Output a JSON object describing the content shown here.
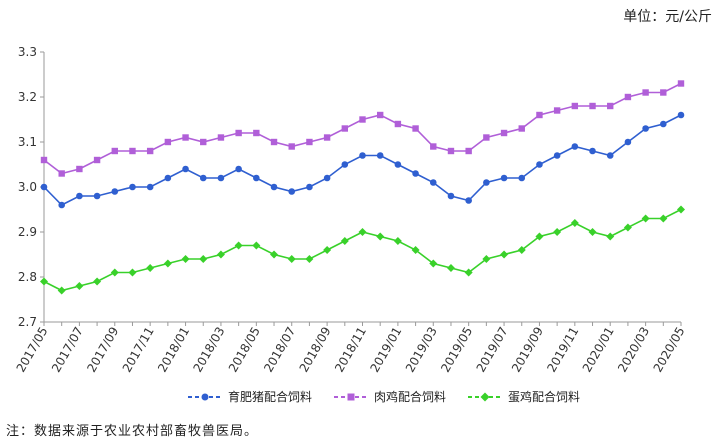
{
  "unit_label": "单位：元/公斤",
  "note": "注：数据来源于农业农村部畜牧兽医局。",
  "chart_data": {
    "type": "line",
    "title": "",
    "xlabel": "",
    "ylabel": "",
    "ylim": [
      2.7,
      3.3
    ],
    "yticks": [
      "3.3",
      "3.2",
      "3.1",
      "3.0",
      "2.9",
      "2.8",
      "2.7"
    ],
    "grid": false,
    "legend_position": "bottom",
    "x": [
      "2017/05",
      "2017/06",
      "2017/07",
      "2017/08",
      "2017/09",
      "2017/10",
      "2017/11",
      "2017/12",
      "2018/01",
      "2018/02",
      "2018/03",
      "2018/04",
      "2018/05",
      "2018/06",
      "2018/07",
      "2018/08",
      "2018/09",
      "2018/10",
      "2018/11",
      "2018/12",
      "2019/01",
      "2019/02",
      "2019/03",
      "2019/04",
      "2019/05",
      "2019/06",
      "2019/07",
      "2019/08",
      "2019/09",
      "2019/10",
      "2019/11",
      "2019/12",
      "2020/01",
      "2020/02",
      "2020/03",
      "2020/04",
      "2020/05"
    ],
    "x_tick_labels": [
      "2017/05",
      "2017/07",
      "2017/09",
      "2017/11",
      "2018/01",
      "2018/03",
      "2018/05",
      "2018/07",
      "2018/09",
      "2018/11",
      "2019/01",
      "2019/03",
      "2019/05",
      "2019/07",
      "2019/09",
      "2019/11",
      "2020/01",
      "2020/03",
      "2020/05"
    ],
    "series": [
      {
        "name": "育肥猪配合饲料",
        "color": "#2f5fd0",
        "marker": "circle",
        "values": [
          3.0,
          2.96,
          2.98,
          2.98,
          2.99,
          3.0,
          3.0,
          3.02,
          3.04,
          3.02,
          3.02,
          3.04,
          3.02,
          3.0,
          2.99,
          3.0,
          3.02,
          3.05,
          3.07,
          3.07,
          3.05,
          3.03,
          3.01,
          2.98,
          2.97,
          3.01,
          3.02,
          3.02,
          3.05,
          3.07,
          3.09,
          3.08,
          3.07,
          3.1,
          3.13,
          3.14,
          3.16
        ]
      },
      {
        "name": "肉鸡配合饲料",
        "color": "#b05fd8",
        "marker": "square",
        "values": [
          3.06,
          3.03,
          3.04,
          3.06,
          3.08,
          3.08,
          3.08,
          3.1,
          3.11,
          3.1,
          3.11,
          3.12,
          3.12,
          3.1,
          3.09,
          3.1,
          3.11,
          3.13,
          3.15,
          3.16,
          3.14,
          3.13,
          3.09,
          3.08,
          3.08,
          3.11,
          3.12,
          3.13,
          3.16,
          3.17,
          3.18,
          3.18,
          3.18,
          3.2,
          3.21,
          3.21,
          3.23
        ]
      },
      {
        "name": "蛋鸡配合饲料",
        "color": "#39d12a",
        "marker": "diamond",
        "values": [
          2.79,
          2.77,
          2.78,
          2.79,
          2.81,
          2.81,
          2.82,
          2.83,
          2.84,
          2.84,
          2.85,
          2.87,
          2.87,
          2.85,
          2.84,
          2.84,
          2.86,
          2.88,
          2.9,
          2.89,
          2.88,
          2.86,
          2.83,
          2.82,
          2.81,
          2.84,
          2.85,
          2.86,
          2.89,
          2.9,
          2.92,
          2.9,
          2.89,
          2.91,
          2.93,
          2.93,
          2.95
        ]
      }
    ]
  }
}
